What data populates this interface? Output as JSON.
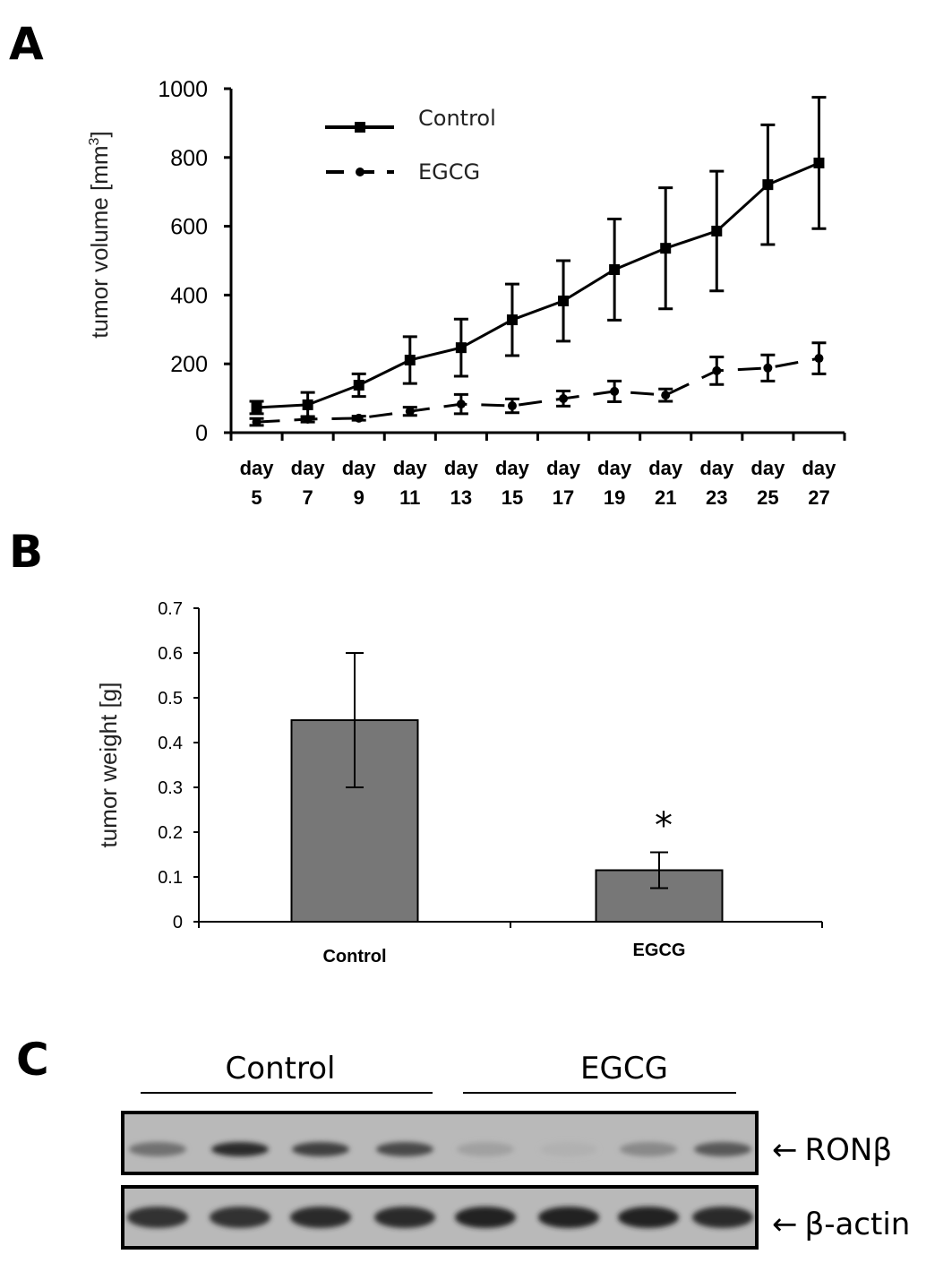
{
  "chart_data": [
    {
      "panel": "A",
      "type": "line",
      "ylabel": "tumor volume [mm",
      "ylabel_sup": "3",
      "ylabel_close": "]",
      "ylim": [
        0,
        1000
      ],
      "yticks": [
        "0",
        "200",
        "400",
        "600",
        "800",
        "1000"
      ],
      "x_top": [
        "day",
        "day",
        "day",
        "day",
        "day",
        "day",
        "day",
        "day",
        "day",
        "day",
        "day",
        "day"
      ],
      "x": [
        "5",
        "7",
        "9",
        "11",
        "13",
        "15",
        "17",
        "19",
        "21",
        "23",
        "25",
        "27"
      ],
      "legend_position": "top-left",
      "series": [
        {
          "name": "Control",
          "style": "solid",
          "marker": "square",
          "values": [
            73,
            81,
            138,
            211,
            247,
            328,
            383,
            474,
            536,
            586,
            721,
            784
          ],
          "errors": [
            18,
            36,
            33,
            68,
            83,
            104,
            117,
            147,
            176,
            174,
            174,
            191
          ]
        },
        {
          "name": "EGCG",
          "style": "dashed",
          "marker": "circle",
          "values": [
            31,
            39,
            42,
            62,
            83,
            78,
            99,
            120,
            109,
            180,
            188,
            216
          ],
          "errors": [
            10,
            8,
            6,
            12,
            28,
            20,
            22,
            30,
            18,
            40,
            38,
            45
          ]
        }
      ]
    },
    {
      "panel": "B",
      "type": "bar",
      "ylabel": "tumor weight [g]",
      "ylim": [
        0,
        0.7
      ],
      "yticks": [
        "0",
        "0.1",
        "0.2",
        "0.3",
        "0.4",
        "0.5",
        "0.6",
        "0.7"
      ],
      "categories": [
        "Control",
        "EGCG"
      ],
      "values": [
        0.45,
        0.115
      ],
      "errors": [
        0.15,
        0.04
      ],
      "bar_color": "#777777",
      "annotation": "*"
    }
  ],
  "blot": {
    "panel": "C",
    "groups": [
      "Control",
      "EGCG"
    ],
    "rows": [
      {
        "label": "RONβ",
        "intensities": [
          0.45,
          0.9,
          0.75,
          0.7,
          0.15,
          0.05,
          0.3,
          0.6
        ]
      },
      {
        "label": "β-actin",
        "intensities": [
          0.85,
          0.85,
          0.9,
          0.88,
          0.95,
          0.95,
          0.95,
          0.9
        ]
      }
    ],
    "arrow": "←"
  }
}
